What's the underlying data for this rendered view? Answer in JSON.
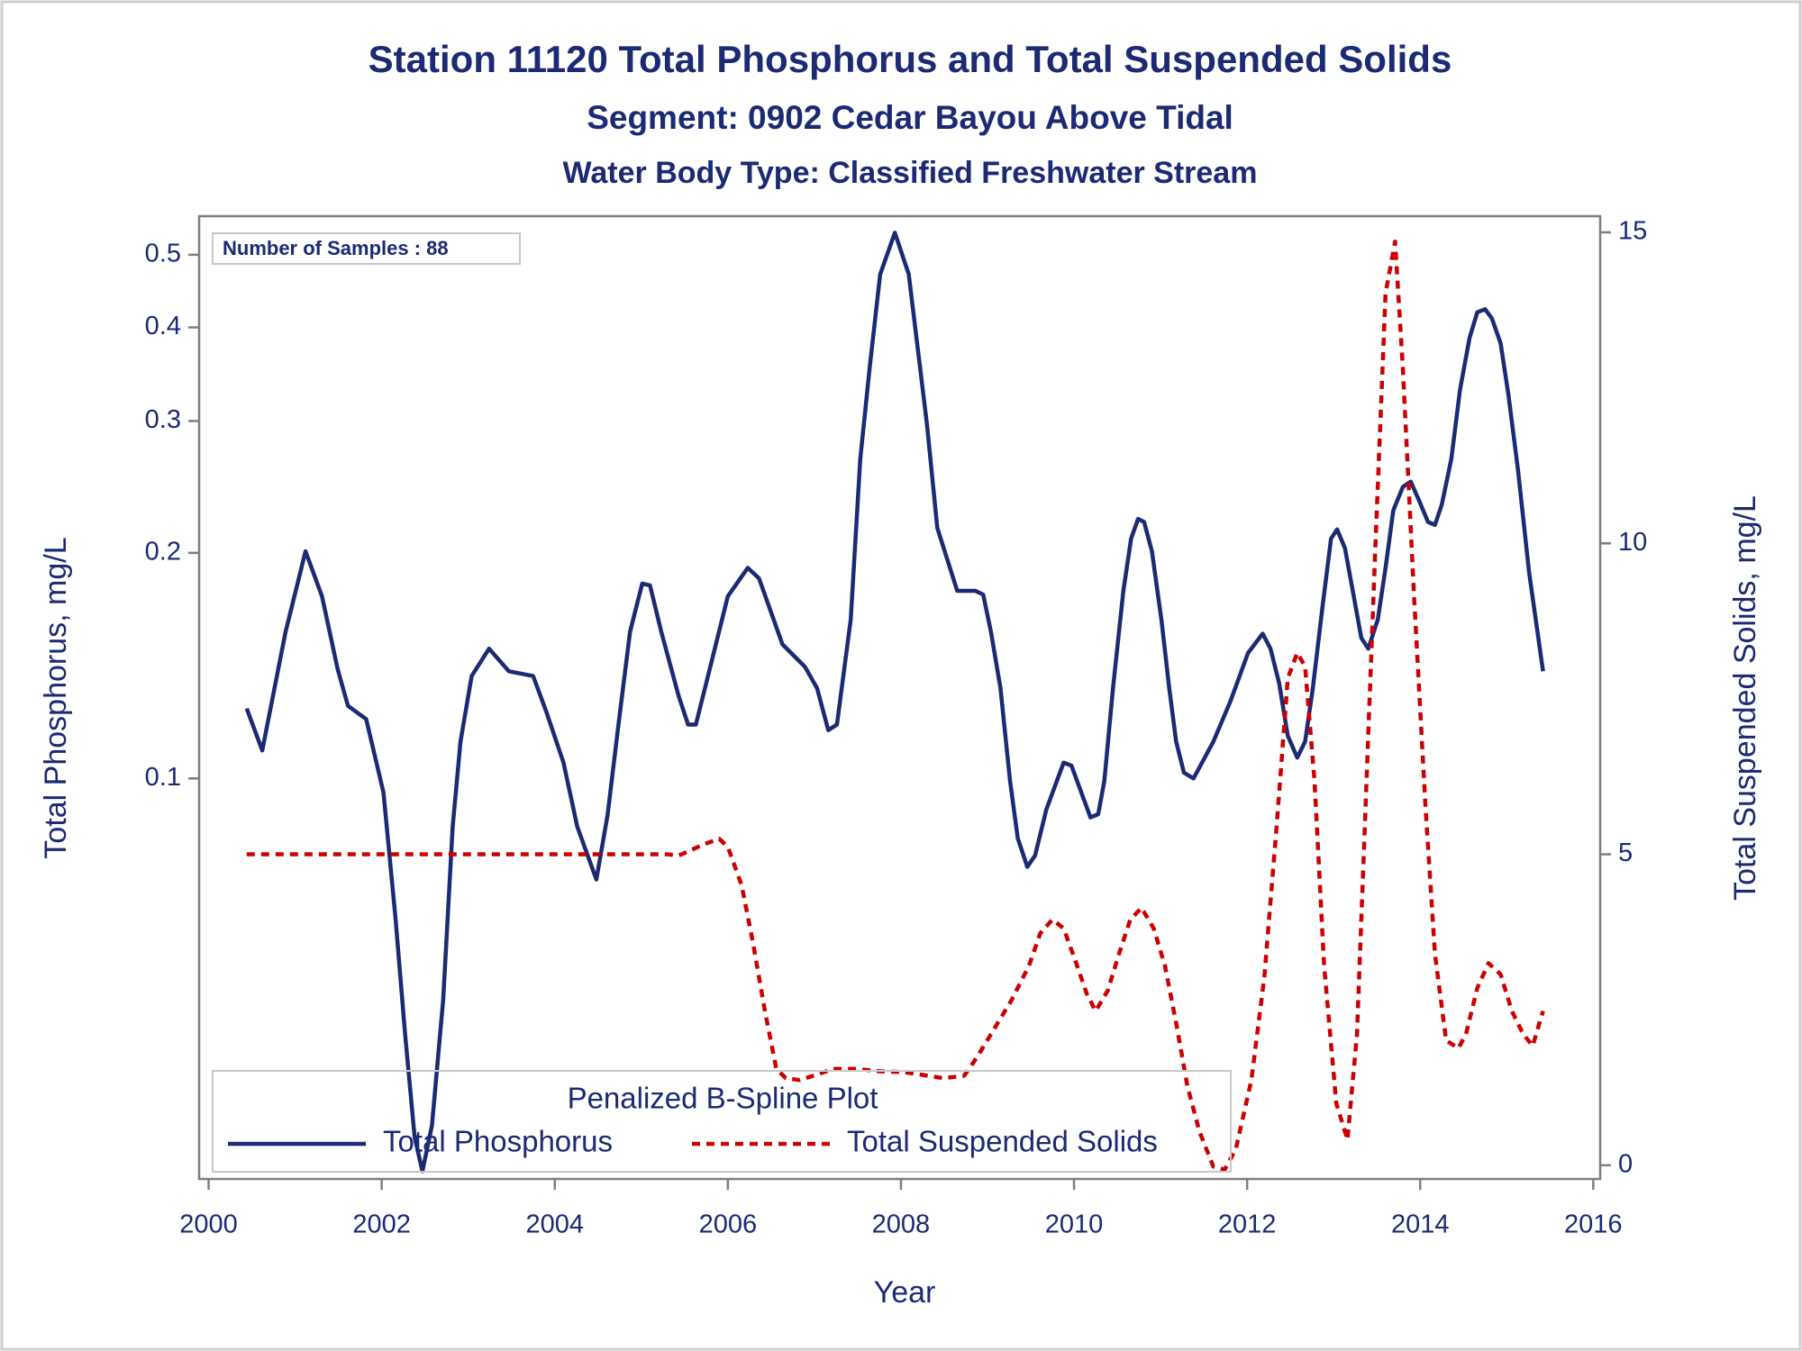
{
  "chart_data": {
    "type": "line",
    "title": "Station 11120  Total Phosphorus and Total Suspended Solids",
    "subtitle": "Segment: 0902  Cedar Bayou Above Tidal",
    "subtitle2": "Water Body Type: Classified Freshwater Stream",
    "annotation": "Number of Samples : 88",
    "legend_title": "Penalized B-Spline Plot",
    "legend": "bottom-left",
    "xlabel": "Year",
    "ylabel": "Total Phosphorus, mg/L",
    "y2label": "Total Suspended Solids, mg/L",
    "xlim": [
      1999.89,
      2016.08
    ],
    "xticks": [
      2000,
      2002,
      2004,
      2006,
      2008,
      2010,
      2012,
      2014,
      2016
    ],
    "yscale": "log",
    "ylim": [
      0.0292,
      0.563
    ],
    "yticks": [
      0.1,
      0.2,
      0.3,
      0.4,
      0.5
    ],
    "y2lim": [
      -0.22,
      15.26
    ],
    "y2ticks": [
      0,
      5,
      10,
      15
    ],
    "series": [
      {
        "name": "Total Phosphorus",
        "color": "#1b2a72",
        "dash": "solid",
        "axis": "y",
        "x": [
          2000.44,
          2000.62,
          2000.89,
          2001.12,
          2001.31,
          2001.49,
          2001.61,
          2001.82,
          2002.02,
          2002.16,
          2002.27,
          2002.38,
          2002.47,
          2002.58,
          2002.71,
          2002.82,
          2002.91,
          2003.04,
          2003.24,
          2003.47,
          2003.75,
          2003.9,
          2004.1,
          2004.26,
          2004.48,
          2004.61,
          2004.74,
          2004.87,
          2005.01,
          2005.1,
          2005.23,
          2005.43,
          2005.54,
          2005.63,
          2005.75,
          2006.0,
          2006.23,
          2006.36,
          2006.63,
          2006.89,
          2007.03,
          2007.16,
          2007.26,
          2007.42,
          2007.53,
          2007.64,
          2007.76,
          2007.93,
          2008.09,
          2008.3,
          2008.42,
          2008.65,
          2008.86,
          2008.95,
          2009.04,
          2009.15,
          2009.26,
          2009.35,
          2009.46,
          2009.55,
          2009.68,
          2009.88,
          2009.97,
          2010.19,
          2010.28,
          2010.35,
          2010.45,
          2010.57,
          2010.66,
          2010.74,
          2010.81,
          2010.9,
          2011.01,
          2011.1,
          2011.18,
          2011.27,
          2011.38,
          2011.61,
          2011.81,
          2012.01,
          2012.18,
          2012.27,
          2012.37,
          2012.47,
          2012.58,
          2012.67,
          2012.76,
          2012.87,
          2012.97,
          2013.04,
          2013.13,
          2013.21,
          2013.32,
          2013.4,
          2013.51,
          2013.6,
          2013.69,
          2013.8,
          2013.89,
          2013.98,
          2014.09,
          2014.17,
          2014.25,
          2014.36,
          2014.46,
          2014.57,
          2014.66,
          2014.75,
          2014.83,
          2014.93,
          2015.02,
          2015.13,
          2015.26,
          2015.42
        ],
        "values": [
          0.124,
          0.109,
          0.157,
          0.201,
          0.175,
          0.14,
          0.125,
          0.12,
          0.0958,
          0.065,
          0.0456,
          0.0332,
          0.0299,
          0.0344,
          0.0507,
          0.0862,
          0.112,
          0.137,
          0.149,
          0.139,
          0.137,
          0.123,
          0.105,
          0.0862,
          0.0733,
          0.0893,
          0.119,
          0.157,
          0.182,
          0.181,
          0.157,
          0.129,
          0.118,
          0.118,
          0.134,
          0.175,
          0.191,
          0.185,
          0.151,
          0.141,
          0.132,
          0.116,
          0.118,
          0.163,
          0.267,
          0.355,
          0.471,
          0.535,
          0.471,
          0.297,
          0.216,
          0.178,
          0.178,
          0.176,
          0.157,
          0.132,
          0.0993,
          0.0832,
          0.0762,
          0.0789,
          0.0909,
          0.105,
          0.104,
          0.0887,
          0.0896,
          0.0993,
          0.132,
          0.178,
          0.209,
          0.222,
          0.22,
          0.201,
          0.163,
          0.132,
          0.112,
          0.1018,
          0.1,
          0.112,
          0.127,
          0.147,
          0.156,
          0.149,
          0.134,
          0.114,
          0.1066,
          0.112,
          0.132,
          0.169,
          0.209,
          0.215,
          0.203,
          0.181,
          0.154,
          0.149,
          0.163,
          0.191,
          0.228,
          0.245,
          0.249,
          0.236,
          0.22,
          0.218,
          0.232,
          0.267,
          0.33,
          0.387,
          0.419,
          0.423,
          0.411,
          0.381,
          0.325,
          0.258,
          0.188,
          0.139
        ]
      },
      {
        "name": "Total Suspended Solids",
        "color": "#cc0000",
        "dash": "dashed",
        "axis": "y2",
        "x": [
          2000.44,
          2005.3,
          2005.43,
          2005.56,
          2005.74,
          2005.9,
          2006.0,
          2006.16,
          2006.29,
          2006.43,
          2006.56,
          2006.67,
          2006.83,
          2007.03,
          2007.22,
          2007.49,
          2007.76,
          2008.02,
          2008.22,
          2008.49,
          2008.73,
          2008.88,
          2009.08,
          2009.28,
          2009.48,
          2009.61,
          2009.75,
          2009.88,
          2010.01,
          2010.15,
          2010.25,
          2010.39,
          2010.52,
          2010.65,
          2010.78,
          2010.92,
          2011.05,
          2011.18,
          2011.31,
          2011.45,
          2011.61,
          2011.74,
          2011.87,
          2012.05,
          2012.2,
          2012.34,
          2012.47,
          2012.58,
          2012.67,
          2012.78,
          2012.89,
          2013.03,
          2013.16,
          2013.27,
          2013.37,
          2013.48,
          2013.6,
          2013.71,
          2013.8,
          2013.93,
          2014.06,
          2014.17,
          2014.3,
          2014.44,
          2014.53,
          2014.66,
          2014.79,
          2014.93,
          2015.06,
          2015.19,
          2015.3,
          2015.42
        ],
        "values": [
          5,
          5,
          4.98,
          5.06,
          5.17,
          5.25,
          5.12,
          4.5,
          3.58,
          2.47,
          1.55,
          1.4,
          1.37,
          1.46,
          1.55,
          1.55,
          1.51,
          1.5,
          1.46,
          1.4,
          1.44,
          1.74,
          2.2,
          2.66,
          3.21,
          3.73,
          3.95,
          3.81,
          3.31,
          2.75,
          2.48,
          2.81,
          3.4,
          3.95,
          4.14,
          3.81,
          3.21,
          2.29,
          1.27,
          0.54,
          -0.02,
          -0.07,
          0.26,
          1.37,
          3.03,
          5.43,
          7.83,
          8.24,
          8.02,
          6.17,
          3.21,
          1.0,
          0.41,
          2.11,
          5.8,
          9.87,
          14.02,
          14.85,
          12.82,
          9.13,
          5.8,
          3.4,
          2.01,
          1.88,
          2.11,
          2.85,
          3.25,
          3.07,
          2.48,
          2.11,
          1.92,
          2.48
        ]
      }
    ]
  }
}
